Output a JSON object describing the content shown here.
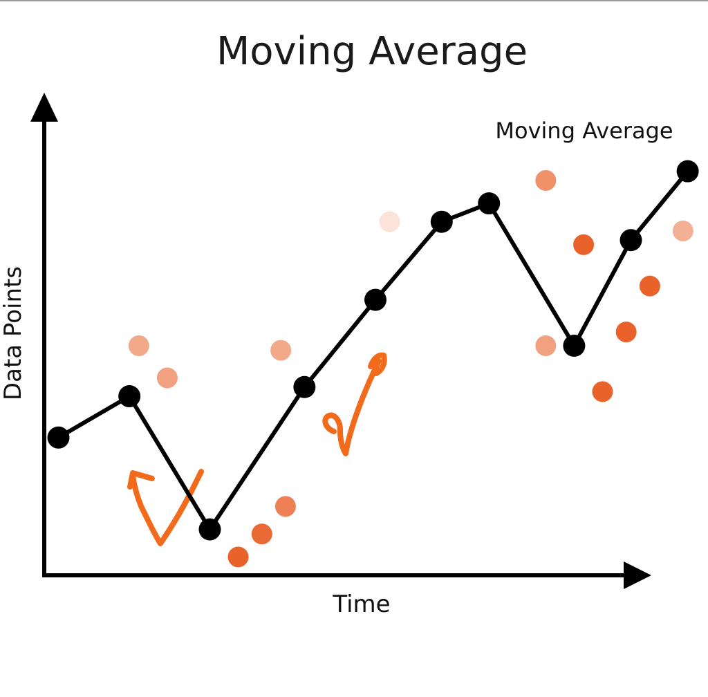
{
  "chart_data": {
    "type": "line",
    "title": "Moving Average",
    "xlabel": "Time",
    "ylabel": "Data Points",
    "grid": false,
    "legend": "none",
    "xlim": [
      0,
      14
    ],
    "ylim": [
      0,
      10
    ],
    "series": [
      {
        "name": "Moving Average",
        "kind": "line",
        "color": "#000000",
        "x": [
          0.3,
          1.8,
          3.5,
          5.5,
          7.0,
          8.4,
          9.4,
          11.2,
          12.4,
          13.6
        ],
        "y": [
          3.0,
          3.9,
          1.0,
          4.1,
          6.0,
          7.7,
          8.1,
          5.0,
          7.3,
          8.8
        ]
      },
      {
        "kind": "scatter",
        "color": "#e8622a",
        "x": [
          2.0,
          2.6,
          5.0,
          4.1,
          4.6,
          5.1,
          7.3,
          10.6,
          11.4,
          11.8,
          12.3,
          12.8,
          13.5,
          10.6
        ],
        "y": [
          5.0,
          4.3,
          4.9,
          0.4,
          0.9,
          1.5,
          7.7,
          8.6,
          7.2,
          4.0,
          5.3,
          6.3,
          7.5,
          5.0
        ],
        "opacity": [
          0.55,
          0.6,
          0.55,
          1.0,
          0.95,
          0.8,
          0.18,
          0.7,
          1.0,
          1.0,
          1.0,
          1.0,
          0.5,
          0.6
        ]
      }
    ]
  }
}
